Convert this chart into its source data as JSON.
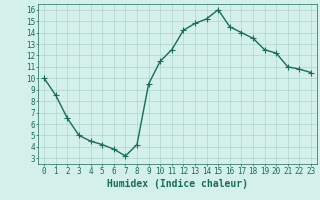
{
  "x": [
    0,
    1,
    2,
    3,
    4,
    5,
    6,
    7,
    8,
    9,
    10,
    11,
    12,
    13,
    14,
    15,
    16,
    17,
    18,
    19,
    20,
    21,
    22,
    23
  ],
  "y": [
    10.0,
    8.5,
    6.5,
    5.0,
    4.5,
    4.2,
    3.8,
    3.2,
    4.2,
    9.5,
    11.5,
    12.5,
    14.2,
    14.8,
    15.2,
    16.0,
    14.5,
    14.0,
    13.5,
    12.5,
    12.2,
    11.0,
    10.8,
    10.5
  ],
  "xlabel": "Humidex (Indice chaleur)",
  "xlim": [
    -0.5,
    23.5
  ],
  "ylim": [
    2.5,
    16.5
  ],
  "line_color": "#1a6b5a",
  "marker_color": "#1a6b5a",
  "bg_color": "#d4f0ea",
  "grid_color": "#aed4cc",
  "axis_color": "#1a6b5a",
  "yticks": [
    3,
    4,
    5,
    6,
    7,
    8,
    9,
    10,
    11,
    12,
    13,
    14,
    15,
    16
  ],
  "xticks": [
    0,
    1,
    2,
    3,
    4,
    5,
    6,
    7,
    8,
    9,
    10,
    11,
    12,
    13,
    14,
    15,
    16,
    17,
    18,
    19,
    20,
    21,
    22,
    23
  ],
  "tick_fontsize": 5.5,
  "xlabel_fontsize": 7,
  "line_width": 1.0,
  "marker_size": 4.0,
  "marker_ew": 0.8
}
